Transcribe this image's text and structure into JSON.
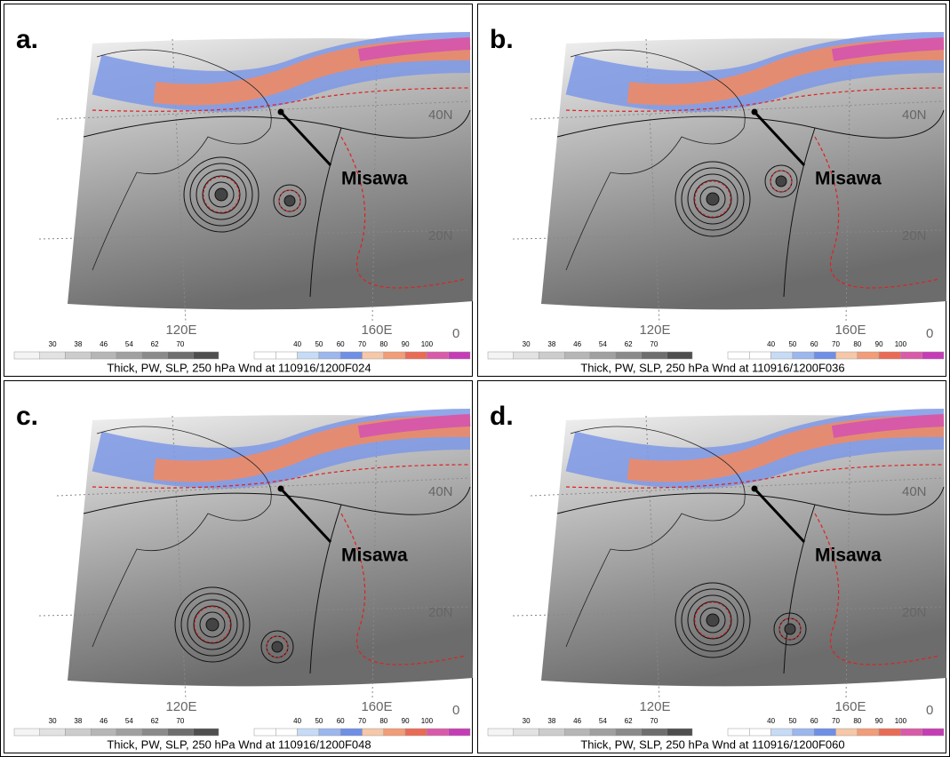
{
  "panels": [
    {
      "label": "a.",
      "caption": "Thick, PW, SLP, 250 hPa Wnd at 110916/1200F024"
    },
    {
      "label": "b.",
      "caption": "Thick, PW, SLP, 250 hPa Wnd at 110916/1200F036"
    },
    {
      "label": "c.",
      "caption": "Thick, PW, SLP, 250 hPa Wnd at 110916/1200F048"
    },
    {
      "label": "d.",
      "caption": "Thick, PW, SLP, 250 hPa Wnd at 110916/1200F060"
    }
  ],
  "map_labels": {
    "station": "Misawa",
    "lat_40": "40N",
    "lat_20": "20N",
    "lon_120": "120E",
    "lon_160": "160E",
    "lon_end": "0"
  },
  "pw_scale": {
    "ticks": [
      30,
      38,
      46,
      54,
      62,
      70
    ],
    "colors": [
      "#f4f4f4",
      "#e2e2e2",
      "#cccccc",
      "#b6b6b6",
      "#a0a0a0",
      "#8a8a8a",
      "#6e6e6e",
      "#4e4e4e"
    ]
  },
  "wind_scale": {
    "ticks": [
      40,
      50,
      60,
      70,
      80,
      90,
      100
    ],
    "colors": [
      "#ffffff",
      "#ffffff",
      "#c6dbf5",
      "#9cb6ee",
      "#6f8ee6",
      "#f6c7a8",
      "#f29c78",
      "#ea6b55",
      "#d95aa8",
      "#c63cb6"
    ]
  }
}
